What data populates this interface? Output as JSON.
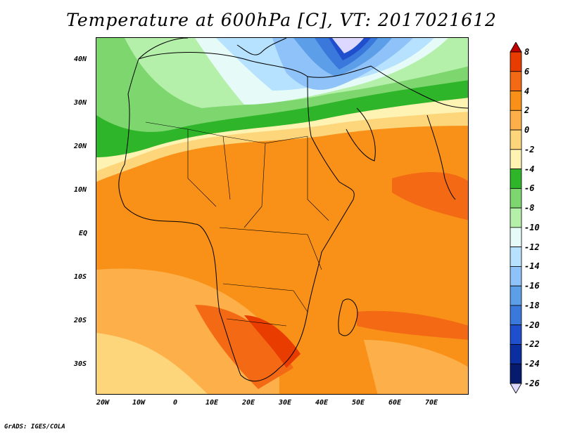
{
  "title": "Temperature at 600hPa [C], VT: 2017021612",
  "credit": "GrADS: IGES/COLA",
  "axes": {
    "lat_labels": [
      "40N",
      "30N",
      "20N",
      "10N",
      "EQ",
      "10S",
      "20S",
      "30S"
    ],
    "lat_values": [
      40,
      30,
      20,
      10,
      0,
      -10,
      -20,
      -30
    ],
    "lon_labels": [
      "20W",
      "10W",
      "0",
      "10E",
      "20E",
      "30E",
      "40E",
      "50E",
      "60E",
      "70E"
    ],
    "lon_values": [
      -20,
      -10,
      0,
      10,
      20,
      30,
      40,
      50,
      60,
      70
    ],
    "lon_range": [
      -22,
      80
    ],
    "lat_range": [
      -37,
      45
    ]
  },
  "colorbar": {
    "labels": [
      "8",
      "6",
      "4",
      "2",
      "0",
      "-2",
      "-4",
      "-6",
      "-8",
      "-10",
      "-12",
      "-14",
      "-16",
      "-18",
      "-20",
      "-22",
      "-24",
      "-26"
    ],
    "colors": [
      "#c00000",
      "#e83c00",
      "#f46a14",
      "#f99118",
      "#fdb04a",
      "#fdd57a",
      "#fff3b4",
      "#2fb52a",
      "#7ed66e",
      "#b4f0aa",
      "#e6fbf8",
      "#b6e2ff",
      "#8fc2f8",
      "#5c9ee8",
      "#3a78dc",
      "#1f4fcc",
      "#0b2ea0",
      "#061a6e",
      "#ddd8ff"
    ]
  }
}
